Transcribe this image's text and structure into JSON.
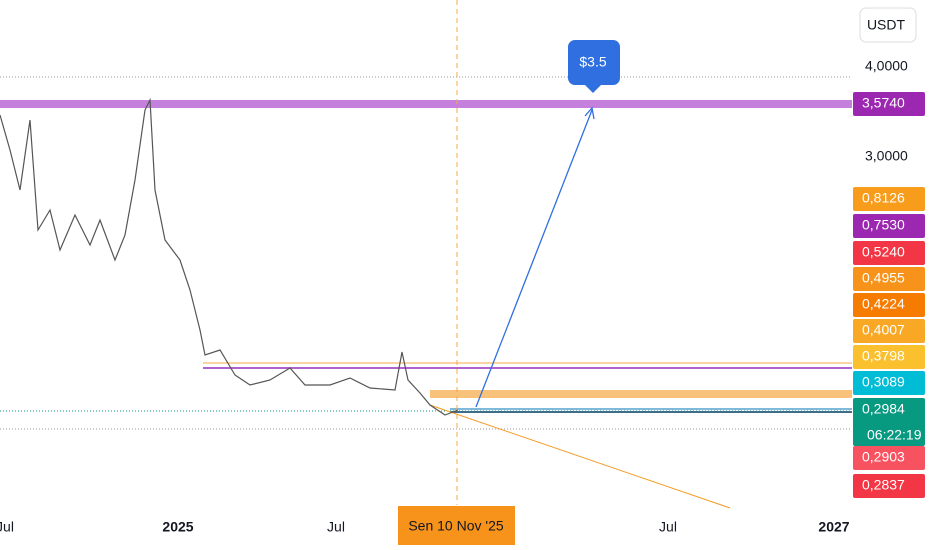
{
  "price_axis": {
    "currency": "USDT",
    "levels": [
      "4,0000",
      "3,0000"
    ],
    "tags": [
      "3,5740",
      "0,8126",
      "0,7530",
      "0,5240",
      "0,4955",
      "0,4224",
      "0,4007",
      "0,3798",
      "0,3089",
      "0,2984",
      "0,2903",
      "0,2837"
    ],
    "countdown": "06:22:19"
  },
  "time_axis": {
    "labels": [
      "Jul",
      "2025",
      "Jul",
      "Jul",
      "2027"
    ],
    "crosshair": "Sen 10 Nov '25"
  },
  "annotation": "$3.5"
}
